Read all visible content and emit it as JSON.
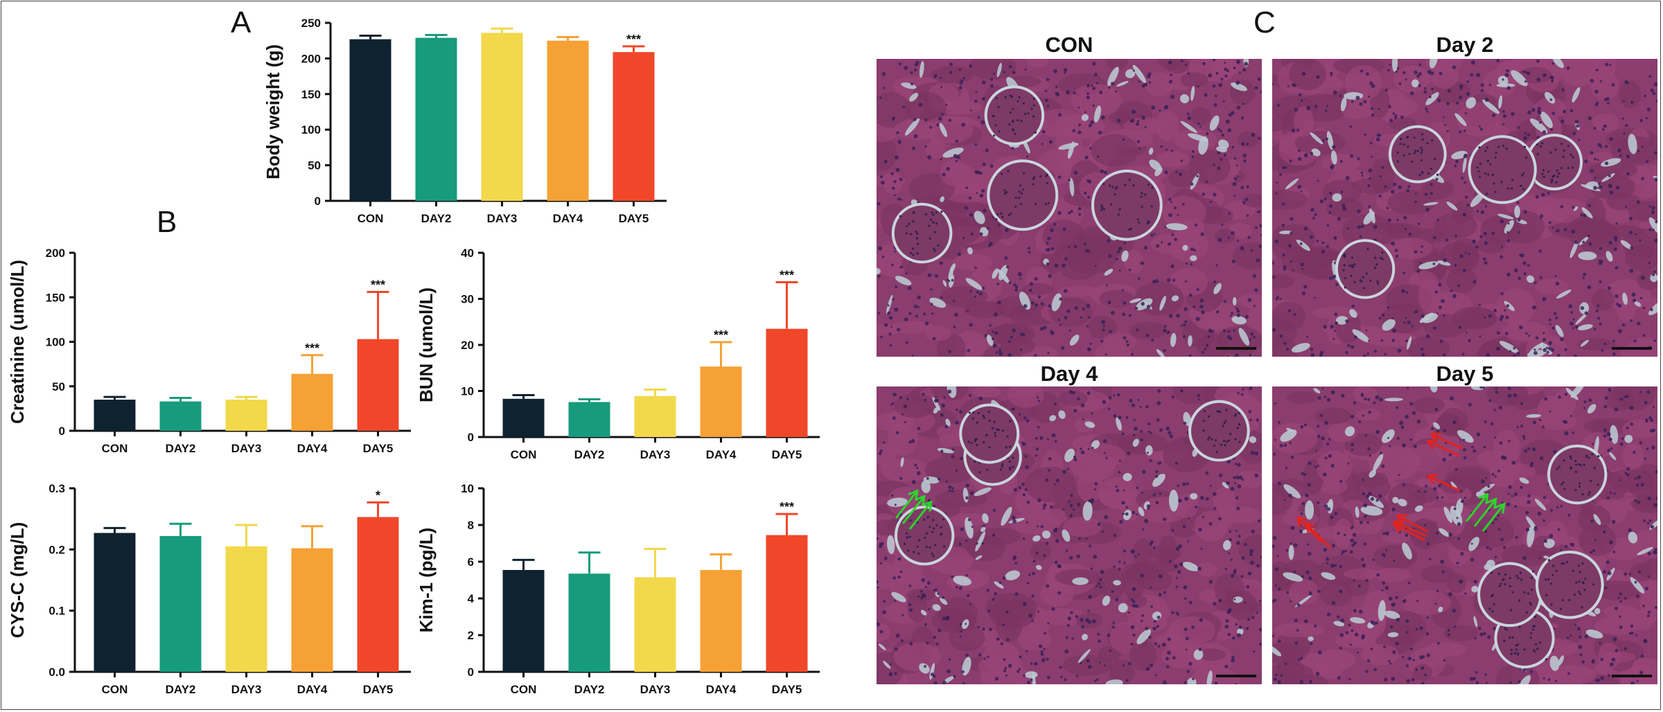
{
  "panels": {
    "A": "A",
    "B": "B",
    "C": "C"
  },
  "colors": {
    "CON": "#0f2230",
    "DAY2": "#169b7c",
    "DAY3": "#f2d84a",
    "DAY4": "#f5a135",
    "DAY5": "#f0472a"
  },
  "chart_data": [
    {
      "id": "body-weight",
      "type": "bar",
      "categories": [
        "CON",
        "DAY2",
        "DAY3",
        "DAY4",
        "DAY5"
      ],
      "values": [
        227,
        229,
        236,
        225,
        209
      ],
      "errors": [
        5,
        4,
        6,
        5,
        8
      ],
      "significance": [
        "",
        "",
        "",
        "",
        "***"
      ],
      "ylabel": "Body weight (g)",
      "ylim": [
        0,
        250
      ],
      "yticks": [
        "0",
        "50",
        "100",
        "150",
        "200",
        "250"
      ]
    },
    {
      "id": "creatinine",
      "type": "bar",
      "categories": [
        "CON",
        "DAY2",
        "DAY3",
        "DAY4",
        "DAY5"
      ],
      "values": [
        35,
        33,
        35,
        64,
        103
      ],
      "errors": [
        3,
        4,
        3,
        21,
        53
      ],
      "significance": [
        "",
        "",
        "",
        "***",
        "***"
      ],
      "ylabel": "Creatinine (umol/L)",
      "ylim": [
        0,
        200
      ],
      "yticks": [
        "0",
        "50",
        "100",
        "150",
        "200"
      ]
    },
    {
      "id": "bun",
      "type": "bar",
      "categories": [
        "CON",
        "DAY2",
        "DAY3",
        "DAY4",
        "DAY5"
      ],
      "values": [
        8.3,
        7.6,
        8.9,
        15.3,
        23.5
      ],
      "errors": [
        0.8,
        0.6,
        1.4,
        5.3,
        10.1
      ],
      "significance": [
        "",
        "",
        "",
        "***",
        "***"
      ],
      "ylabel": "BUN (umol/L)",
      "ylim": [
        0,
        40
      ],
      "yticks": [
        "0",
        "10",
        "20",
        "30",
        "40"
      ]
    },
    {
      "id": "cys-c",
      "type": "bar",
      "categories": [
        "CON",
        "DAY2",
        "DAY3",
        "DAY4",
        "DAY5"
      ],
      "values": [
        0.227,
        0.222,
        0.205,
        0.202,
        0.253
      ],
      "errors": [
        0.008,
        0.02,
        0.035,
        0.036,
        0.024
      ],
      "significance": [
        "",
        "",
        "",
        "",
        "*"
      ],
      "ylabel": "CYS-C (mg/L)",
      "ylim": [
        0,
        0.3
      ],
      "yticks": [
        "0.0",
        "0.1",
        "0.2",
        "0.3"
      ]
    },
    {
      "id": "kim-1",
      "type": "bar",
      "categories": [
        "CON",
        "DAY2",
        "DAY3",
        "DAY4",
        "DAY5"
      ],
      "values": [
        5.55,
        5.35,
        5.15,
        5.55,
        7.45
      ],
      "errors": [
        0.55,
        1.15,
        1.55,
        0.85,
        1.15
      ],
      "significance": [
        "",
        "",
        "",
        "",
        "***"
      ],
      "ylabel": "Kim-1 (pg/L)",
      "ylim": [
        0,
        10
      ],
      "yticks": [
        "0",
        "2",
        "4",
        "6",
        "8",
        "10"
      ]
    }
  ],
  "micrographs": [
    {
      "title": "CON",
      "green_arrows": 0,
      "red_arrows": 0
    },
    {
      "title": "Day 2",
      "green_arrows": 0,
      "red_arrows": 0
    },
    {
      "title": "Day 4",
      "green_arrows": 3,
      "red_arrows": 0
    },
    {
      "title": "Day 5",
      "green_arrows": 3,
      "red_arrows": 6
    }
  ]
}
